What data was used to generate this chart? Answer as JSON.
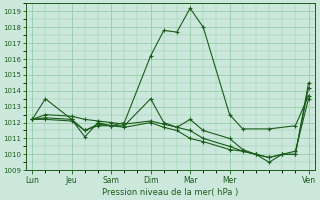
{
  "background_color": "#cce8dd",
  "grid_color": "#99ccaa",
  "line_color": "#1a5c1a",
  "xlabel": "Pression niveau de la mer( hPa )",
  "ylim": [
    1009,
    1019.5
  ],
  "yticks": [
    1009,
    1010,
    1011,
    1012,
    1013,
    1014,
    1015,
    1016,
    1017,
    1018,
    1019
  ],
  "day_labels": [
    "Lun",
    "Jeu",
    "Sam",
    "Dim",
    "Mar",
    "Mer",
    "Ven"
  ],
  "day_positions": [
    0,
    12,
    24,
    36,
    48,
    60,
    84
  ],
  "xlim": [
    -2,
    86
  ],
  "series": [
    {
      "x": [
        0,
        4,
        12,
        16,
        20,
        24,
        28,
        36,
        40,
        44,
        48,
        52,
        60,
        64,
        72,
        80,
        84
      ],
      "y": [
        1012.2,
        1013.5,
        1012.2,
        1011.1,
        1012.0,
        1011.8,
        1012.0,
        1016.2,
        1017.8,
        1017.7,
        1019.2,
        1018.0,
        1012.5,
        1011.6,
        1011.6,
        1011.8,
        1013.7
      ]
    },
    {
      "x": [
        0,
        4,
        12,
        16,
        20,
        24,
        28,
        36,
        40,
        44,
        48,
        52,
        60,
        64,
        68,
        72,
        76,
        80,
        84
      ],
      "y": [
        1012.2,
        1012.3,
        1012.2,
        1011.5,
        1011.8,
        1011.8,
        1011.8,
        1013.5,
        1012.0,
        1011.7,
        1012.2,
        1011.5,
        1011.0,
        1010.3,
        1010.0,
        1009.5,
        1010.0,
        1010.2,
        1013.5
      ]
    },
    {
      "x": [
        0,
        4,
        12,
        16,
        20,
        24,
        28,
        36,
        40,
        44,
        48,
        52,
        60,
        64,
        68,
        72,
        76,
        80,
        84
      ],
      "y": [
        1012.2,
        1012.2,
        1012.1,
        1011.5,
        1011.9,
        1011.8,
        1011.7,
        1012.0,
        1011.7,
        1011.5,
        1011.0,
        1010.8,
        1010.3,
        1010.2,
        1010.0,
        1009.8,
        1010.0,
        1010.0,
        1014.2
      ]
    },
    {
      "x": [
        0,
        4,
        12,
        16,
        20,
        24,
        28,
        36,
        40,
        44,
        48,
        52,
        60,
        64,
        68,
        72,
        76,
        80,
        84
      ],
      "y": [
        1012.2,
        1012.5,
        1012.4,
        1012.2,
        1012.1,
        1012.0,
        1011.9,
        1012.1,
        1011.9,
        1011.7,
        1011.5,
        1011.0,
        1010.5,
        1010.2,
        1010.0,
        1009.8,
        1010.0,
        1010.0,
        1014.5
      ]
    }
  ],
  "figsize": [
    3.2,
    2.0
  ],
  "dpi": 100
}
